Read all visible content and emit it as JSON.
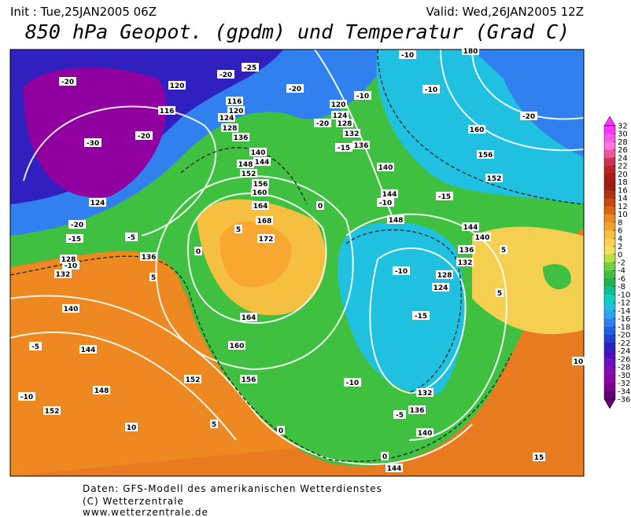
{
  "header": {
    "init": "Init : Tue,25JAN2005 06Z",
    "valid": "Valid: Wed,26JAN2005 12Z",
    "title": "850 hPa Geopot. (gpdm) und Temperatur (Grad C)"
  },
  "colorbar": {
    "ticks": [
      32,
      30,
      28,
      26,
      24,
      22,
      20,
      18,
      16,
      14,
      12,
      10,
      8,
      6,
      4,
      2,
      0,
      -2,
      -4,
      -6,
      -8,
      -10,
      -12,
      -14,
      -16,
      -18,
      -20,
      -22,
      -24,
      -26,
      -28,
      -30,
      -32,
      -34,
      -36
    ],
    "colors": [
      "#ff33ff",
      "#ff55ee",
      "#ff77dd",
      "#ee5599",
      "#cc3355",
      "#bb2222",
      "#aa1a1a",
      "#992010",
      "#b03010",
      "#c84810",
      "#dd6610",
      "#ee8820",
      "#f5a030",
      "#f8c040",
      "#fad050",
      "#f5e060",
      "#b8e040",
      "#70d040",
      "#40c040",
      "#20b050",
      "#10c090",
      "#10d0c0",
      "#20c0e0",
      "#30a0f0",
      "#3080f0",
      "#2060e0",
      "#2040d0",
      "#3020c0",
      "#5010c0",
      "#7010c0",
      "#8010b0",
      "#9000a0",
      "#7a0090",
      "#600070"
    ]
  },
  "contour_labels": [
    "-20",
    "-30",
    "-20",
    "-20",
    "-25",
    "-20",
    "-10",
    "-20",
    "-15",
    "-10",
    "-10",
    "-20",
    "-15",
    "-10",
    "-10",
    "-15",
    "-10",
    "-5",
    "-20",
    "-15",
    "-10",
    "-5",
    "5",
    "0",
    "5",
    "0",
    "5",
    "5",
    "5",
    "10",
    "10",
    "15",
    "0",
    "0",
    "-5",
    "-10",
    "120",
    "116",
    "116",
    "120",
    "124",
    "128",
    "136",
    "140",
    "144",
    "148",
    "152",
    "156",
    "160",
    "164",
    "168",
    "172",
    "164",
    "160",
    "156",
    "152",
    "148",
    "152",
    "144",
    "140",
    "132",
    "128",
    "136",
    "124",
    "120",
    "124",
    "128",
    "132",
    "136",
    "140",
    "144",
    "148",
    "144",
    "140",
    "136",
    "132",
    "128",
    "124",
    "132",
    "136",
    "140",
    "144",
    "160",
    "156",
    "152",
    "180"
  ],
  "footer": [
    "Daten: GFS-Modell des amerikanischen Wetterdienstes",
    "(C) Wetterzentrale",
    "www.wetterzentrale.de"
  ]
}
